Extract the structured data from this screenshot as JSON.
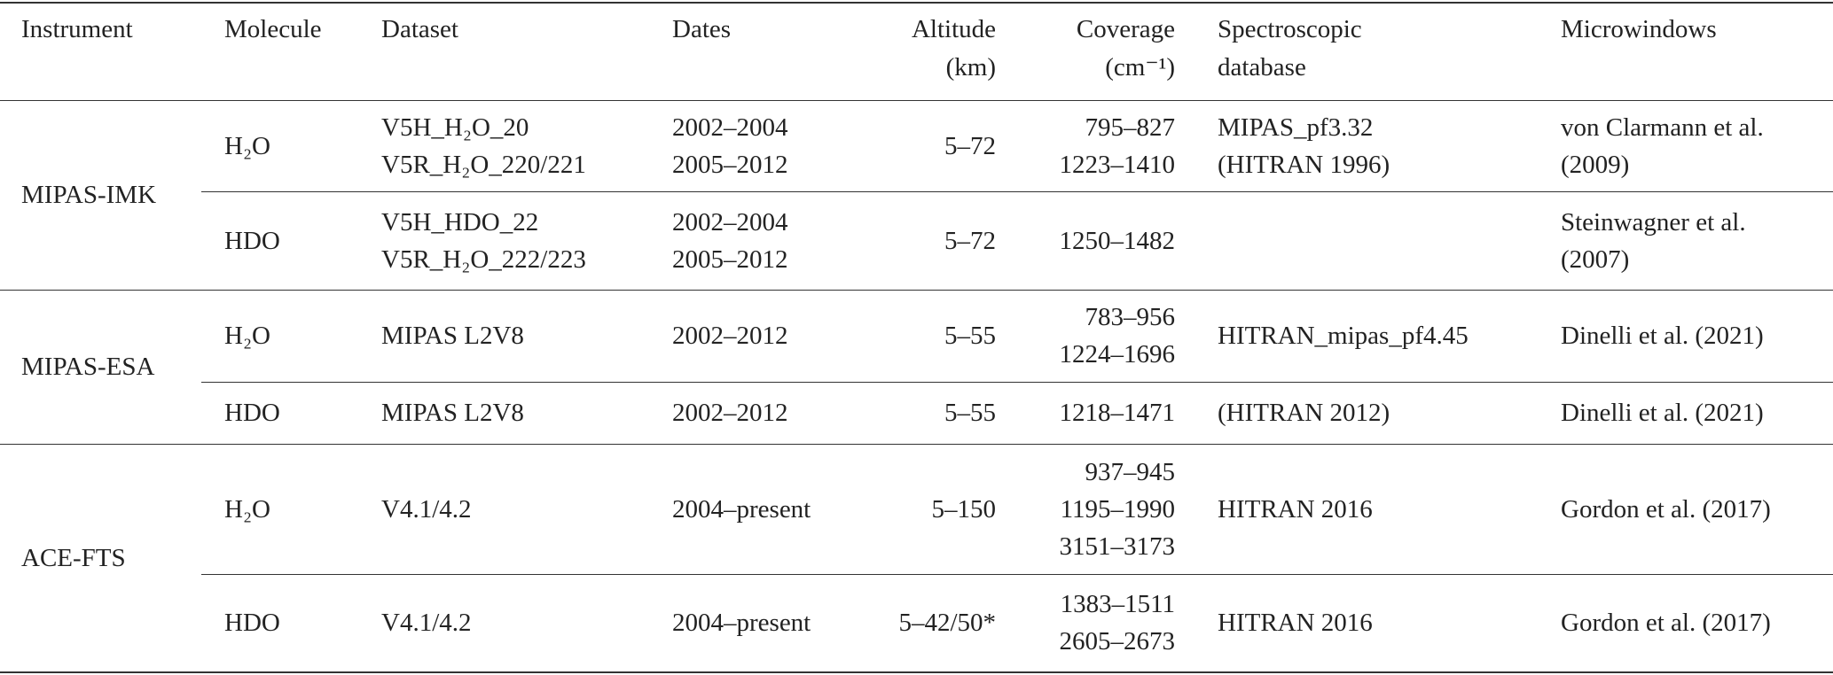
{
  "table": {
    "header": [
      [
        "Instrument"
      ],
      [
        "Molecule"
      ],
      [
        "Dataset"
      ],
      [
        "Dates"
      ],
      [
        "Altitude",
        "(km)"
      ],
      [
        "Coverage",
        "(cm⁻¹)"
      ],
      [
        "Spectroscopic",
        "database"
      ],
      [
        "Microwindows"
      ]
    ],
    "groups": [
      {
        "instrument": "MIPAS-IMK",
        "rows": [
          {
            "molecule": "H₂O",
            "dataset": [
              "V5H_H₂O_20",
              "V5R_H₂O_220/221"
            ],
            "dates": [
              "2002–2004",
              "2005–2012"
            ],
            "altitude": [
              "5–72"
            ],
            "coverage": [
              "795–827",
              "1223–1410"
            ],
            "database": [
              "MIPAS_pf3.32",
              "(HITRAN 1996)"
            ],
            "microwindows": [
              "von Clarmann et al.",
              "(2009)"
            ]
          },
          {
            "molecule": "HDO",
            "dataset": [
              "V5H_HDO_22",
              "V5R_H₂O_222/223"
            ],
            "dates": [
              "2002–2004",
              "2005–2012"
            ],
            "altitude": [
              "5–72"
            ],
            "coverage": [
              "1250–1482"
            ],
            "database": [],
            "microwindows": [
              "Steinwagner et al.",
              "(2007)"
            ]
          }
        ]
      },
      {
        "instrument": "MIPAS-ESA",
        "rows": [
          {
            "molecule": "H₂O",
            "dataset": [
              "MIPAS L2V8"
            ],
            "dates": [
              "2002–2012"
            ],
            "altitude": [
              "5–55"
            ],
            "coverage": [
              "783–956",
              "1224–1696"
            ],
            "database": [
              "HITRAN_mipas_pf4.45"
            ],
            "microwindows": [
              "Dinelli et al. (2021)"
            ]
          },
          {
            "molecule": "HDO",
            "dataset": [
              "MIPAS L2V8"
            ],
            "dates": [
              "2002–2012"
            ],
            "altitude": [
              "5–55"
            ],
            "coverage": [
              "1218–1471"
            ],
            "database": [
              "(HITRAN 2012)"
            ],
            "microwindows": [
              "Dinelli et al. (2021)"
            ]
          }
        ]
      },
      {
        "instrument": "ACE-FTS",
        "rows": [
          {
            "molecule": "H₂O",
            "dataset": [
              "V4.1/4.2"
            ],
            "dates": [
              "2004–present"
            ],
            "altitude": [
              "5–150"
            ],
            "coverage": [
              "937–945",
              "1195–1990",
              "3151–3173"
            ],
            "database": [
              "HITRAN 2016"
            ],
            "microwindows": [
              "Gordon et al. (2017)"
            ]
          },
          {
            "molecule": "HDO",
            "dataset": [
              "V4.1/4.2"
            ],
            "dates": [
              "2004–present"
            ],
            "altitude": [
              "5–42/50*"
            ],
            "coverage": [
              "1383–1511",
              "2605–2673"
            ],
            "database": [
              "HITRAN 2016"
            ],
            "microwindows": [
              "Gordon et al. (2017)"
            ]
          }
        ]
      }
    ]
  }
}
